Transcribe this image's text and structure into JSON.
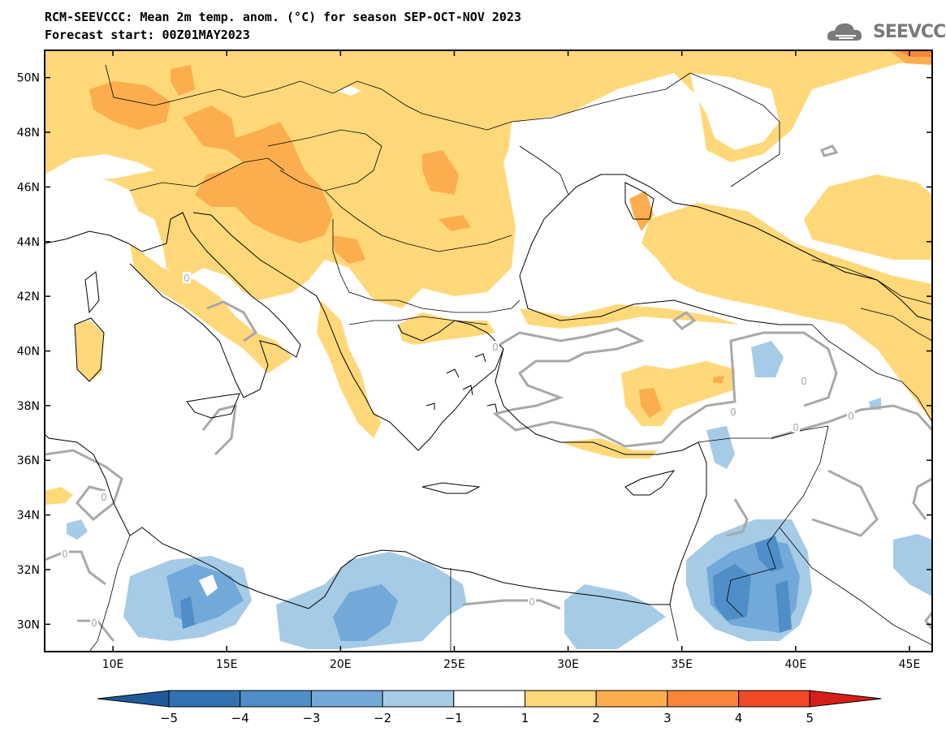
{
  "title": {
    "line1": "RCM-SEEVCCC: Mean 2m temp. anom. (°C) for season SEP-OCT-NOV 2023",
    "line2": "Forecast start: 00Z01MAY2023"
  },
  "logo": {
    "text": "SEEVCCC",
    "icon": "cloud-logo-icon"
  },
  "map": {
    "lon_range": [
      7,
      46
    ],
    "lat_range": [
      29,
      51
    ],
    "lat_ticks": [
      {
        "value": 50,
        "label": "50N"
      },
      {
        "value": 48,
        "label": "48N"
      },
      {
        "value": 46,
        "label": "46N"
      },
      {
        "value": 44,
        "label": "44N"
      },
      {
        "value": 42,
        "label": "42N"
      },
      {
        "value": 40,
        "label": "40N"
      },
      {
        "value": 38,
        "label": "38N"
      },
      {
        "value": 36,
        "label": "36N"
      },
      {
        "value": 34,
        "label": "34N"
      },
      {
        "value": 32,
        "label": "32N"
      },
      {
        "value": 30,
        "label": "30N"
      }
    ],
    "lon_ticks": [
      {
        "value": 10,
        "label": "10E"
      },
      {
        "value": 15,
        "label": "15E"
      },
      {
        "value": 20,
        "label": "20E"
      },
      {
        "value": 25,
        "label": "25E"
      },
      {
        "value": 30,
        "label": "30E"
      },
      {
        "value": 35,
        "label": "35E"
      },
      {
        "value": 40,
        "label": "40E"
      },
      {
        "value": 45,
        "label": "45E"
      }
    ],
    "contour_label": "0"
  },
  "colorbar": {
    "labels": [
      "−5",
      "−4",
      "−3",
      "−2",
      "−1",
      "1",
      "2",
      "3",
      "4",
      "5"
    ],
    "colors": [
      "#1e5a9a",
      "#3372b0",
      "#4f8ec8",
      "#72a9d8",
      "#a6cbe6",
      "#ffffff",
      "#ffd87a",
      "#fcae4e",
      "#f98538",
      "#f24a26",
      "#d51f18"
    ]
  }
}
